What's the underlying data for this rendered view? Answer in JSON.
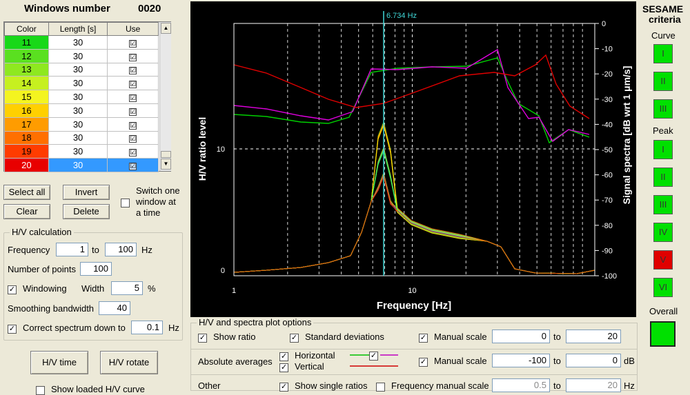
{
  "header": {
    "title": "Windows number",
    "count": "0020"
  },
  "windows_table": {
    "columns": [
      "Color",
      "Length [s]",
      "Use"
    ],
    "rows": [
      {
        "id": "11",
        "length": "30",
        "use": "☑",
        "color": "#18d818"
      },
      {
        "id": "12",
        "length": "30",
        "use": "☑",
        "color": "#5ae020"
      },
      {
        "id": "13",
        "length": "30",
        "use": "☑",
        "color": "#8ee820"
      },
      {
        "id": "14",
        "length": "30",
        "use": "☑",
        "color": "#c6f020"
      },
      {
        "id": "15",
        "length": "30",
        "use": "☑",
        "color": "#f4f420"
      },
      {
        "id": "16",
        "length": "30",
        "use": "☑",
        "color": "#ffd000"
      },
      {
        "id": "17",
        "length": "30",
        "use": "☑",
        "color": "#ff9c00"
      },
      {
        "id": "18",
        "length": "30",
        "use": "☑",
        "color": "#ff7000"
      },
      {
        "id": "19",
        "length": "30",
        "use": "☑",
        "color": "#ff3c00"
      },
      {
        "id": "20",
        "length": "30",
        "use": "☑",
        "color": "#e80000"
      }
    ]
  },
  "buttons": {
    "select_all": "Select all",
    "invert": "Invert",
    "clear": "Clear",
    "delete": "Delete",
    "hv_time": "H/V time",
    "hv_rotate": "H/V rotate"
  },
  "switch_option": {
    "line1": "Switch one",
    "line2": "window at",
    "line3": "a time",
    "checked": ""
  },
  "hv_calc": {
    "legend": "H/V calculation",
    "frequency_label": "Frequency",
    "freq_from": "1",
    "to_label": "to",
    "freq_to": "100",
    "hz_unit": "Hz",
    "points_label": "Number of points",
    "points_value": "100",
    "windowing_label": "Windowing",
    "windowing_checked": "✓",
    "width_label": "Width",
    "width_value": "5",
    "percent": "%",
    "smoothing_label": "Smoothing bandwidth",
    "smoothing_value": "40",
    "correct_label": "Correct spectrum down to",
    "correct_checked": "✓",
    "correct_value": "0.1",
    "correct_unit": "Hz"
  },
  "show_loaded": "Show loaded H/V curve",
  "plot": {
    "peak_label": "6.734 Hz",
    "x_axis_label": "Frequency [Hz]",
    "left_axis_label": "H/V ratio level",
    "right_axis_label": "Signal spectra [dB wrt 1 μm/s]",
    "x_ticks": [
      "1",
      "10"
    ],
    "left_ticks": [
      "0",
      "10"
    ],
    "right_ticks": [
      "0",
      "-10",
      "-20",
      "-30",
      "-40",
      "-50",
      "-60",
      "-70",
      "-80",
      "-90",
      "-100"
    ]
  },
  "sesame": {
    "title1": "SESAME",
    "title2": "criteria",
    "curve_label": "Curve",
    "peak_label": "Peak",
    "overall_label": "Overall",
    "curve": [
      {
        "label": "I",
        "color": "#00e000"
      },
      {
        "label": "II",
        "color": "#00e000"
      },
      {
        "label": "III",
        "color": "#00e000"
      }
    ],
    "peak": [
      {
        "label": "I",
        "color": "#00e000"
      },
      {
        "label": "II",
        "color": "#00e000"
      },
      {
        "label": "III",
        "color": "#00e000"
      },
      {
        "label": "IV",
        "color": "#00e000"
      },
      {
        "label": "V",
        "color": "#e00000"
      },
      {
        "label": "VI",
        "color": "#00e000"
      }
    ],
    "overall_color": "#00e000"
  },
  "plot_options": {
    "legend": "H/V and spectra plot options",
    "show_ratio": "Show ratio",
    "show_ratio_checked": "✓",
    "std_dev": "Standard deviations",
    "std_dev_checked": "✓",
    "manual_scale": "Manual scale",
    "manual_scale_checked": "✓",
    "scale1_from": "0",
    "scale1_to": "20",
    "to_label": "to",
    "abs_avg": "Absolute averages",
    "horizontal": "Horizontal",
    "horizontal_checked": "✓",
    "vertical": "Vertical",
    "vertical_checked": "✓",
    "combo_checked": "✓",
    "manual_scale2": "Manual scale",
    "manual_scale2_checked": "✓",
    "scale2_from": "-100",
    "scale2_to": "0",
    "db_unit": "dB",
    "other": "Other",
    "single_ratios": "Show single ratios",
    "single_ratios_checked": "✓",
    "freq_manual": "Frequency manual scale",
    "freq_manual_checked": "",
    "scale3_from": "0.5",
    "scale3_to": "20",
    "hz_unit": "Hz"
  }
}
